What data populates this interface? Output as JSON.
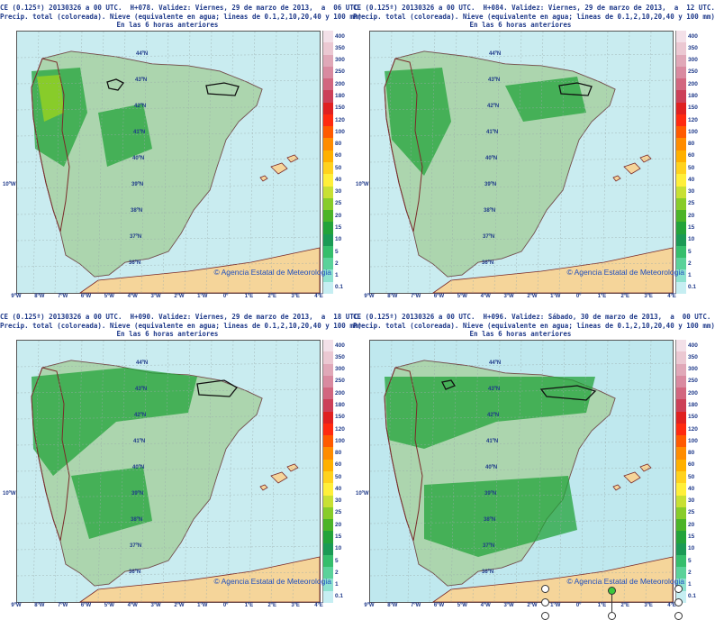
{
  "panels": [
    {
      "title_line1": "CE (0.125º) 20130326 a 00 UTC.  H+078. Validez: Viernes, 29 de marzo de 2013,  a  06 UTC.",
      "title_line2": "Precip. total (coloreada). Nieve (equivalente en agua; lineas de 0.1,2,10,20,40 y 100 mm)",
      "title_line3": "En las 6 horas anteriores",
      "credit": "© Agencia Estatal de Meteorologia"
    },
    {
      "title_line1": "CE (0.125º) 20130326 a 00 UTC.  H+084. Validez: Viernes, 29 de marzo de 2013,  a  12 UTC.",
      "title_line2": "Precip. total (coloreada). Nieve (equivalente en agua; lineas de 0.1,2,10,20,40 y 100 mm)",
      "title_line3": "En las 6 horas anteriores",
      "credit": "© Agencia Estatal de Meteorologia"
    },
    {
      "title_line1": "CE (0.125º) 20130326 a 00 UTC.  H+090. Validez: Viernes, 29 de marzo de 2013,  a  18 UTC.",
      "title_line2": "Precip. total (coloreada). Nieve (equivalente en agua; lineas de 0.1,2,10,20,40 y 100 mm)",
      "title_line3": "En las 6 horas anteriores",
      "credit": "© Agencia Estatal de Meteorologia"
    },
    {
      "title_line1": "CE (0.125º) 20130326 a 00 UTC.  H+096. Validez: Sábado, 30 de marzo de 2013,  a  00 UTC.",
      "title_line2": "Precip. total (coloreada). Nieve (equivalente en agua; lineas de 0.1,2,10,20,40 y 100 mm)",
      "title_line3": "En las 6 horas anteriores",
      "credit": "© Agencia Estatal de Meteorologia"
    }
  ],
  "longitudes": [
    "9ºW",
    "8ºW",
    "7ºW",
    "6ºW",
    "5ºW",
    "4ºW",
    "3ºW",
    "2ºW",
    "1ºW",
    "0º",
    "1ºE",
    "2ºE",
    "3ºE",
    "4ºE"
  ],
  "latitudes": [
    "44ºN",
    "43ºN",
    "42ºN",
    "41ºN",
    "40ºN",
    "39ºN",
    "38ºN",
    "37ºN",
    "36ºN"
  ],
  "left_lat_label": "10ºW",
  "legend": {
    "labels": [
      "400",
      "350",
      "300",
      "250",
      "200",
      "180",
      "150",
      "120",
      "100",
      "80",
      "60",
      "50",
      "40",
      "30",
      "25",
      "20",
      "15",
      "10",
      "5",
      "2",
      "1",
      "0.1"
    ],
    "colors": [
      "#f3e0e8",
      "#ebc8d2",
      "#e0a8b8",
      "#d98aa0",
      "#d2667f",
      "#cc4058",
      "#e02020",
      "#ff2a10",
      "#ff5a00",
      "#ff8c00",
      "#ffb000",
      "#ffd21e",
      "#ffef3a",
      "#c8e034",
      "#88cc2a",
      "#4cb428",
      "#23a33a",
      "#1b9a55",
      "#35be6c",
      "#5ad29a",
      "#8ee2d0",
      "#c6eef2"
    ]
  }
}
